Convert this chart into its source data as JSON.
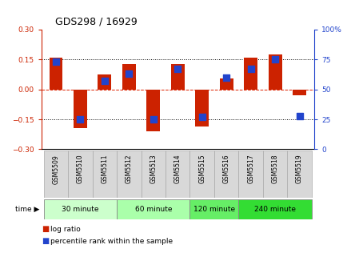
{
  "title": "GDS298 / 16929",
  "samples": [
    "GSM5509",
    "GSM5510",
    "GSM5511",
    "GSM5512",
    "GSM5513",
    "GSM5514",
    "GSM5515",
    "GSM5516",
    "GSM5517",
    "GSM5518",
    "GSM5519"
  ],
  "log_ratio": [
    0.16,
    -0.195,
    0.075,
    0.128,
    -0.21,
    0.128,
    -0.185,
    0.055,
    0.158,
    0.175,
    -0.03
  ],
  "percentile": [
    73,
    25,
    57,
    63,
    25,
    67,
    27,
    60,
    67,
    75,
    28
  ],
  "groups": [
    {
      "label": "30 minute",
      "samples": [
        0,
        1,
        2
      ],
      "color": "#ccffcc"
    },
    {
      "label": "60 minute",
      "samples": [
        3,
        4,
        5
      ],
      "color": "#aaffaa"
    },
    {
      "label": "120 minute",
      "samples": [
        6,
        7
      ],
      "color": "#66ee66"
    },
    {
      "label": "240 minute",
      "samples": [
        8,
        9,
        10
      ],
      "color": "#33dd33"
    }
  ],
  "ylim_left": [
    -0.3,
    0.3
  ],
  "ylim_right": [
    0,
    100
  ],
  "yticks_left": [
    -0.3,
    -0.15,
    0,
    0.15,
    0.3
  ],
  "yticks_right": [
    0,
    25,
    50,
    75,
    100
  ],
  "hlines_dotted": [
    0.15,
    -0.15
  ],
  "hline_zero": 0,
  "bar_color": "#cc2200",
  "dot_color": "#2244cc",
  "bg_color": "#ffffff",
  "left_tick_color": "#cc2200",
  "right_tick_color": "#2244cc",
  "bar_width": 0.55,
  "dot_size": 28,
  "cell_color": "#d8d8d8",
  "cell_edge_color": "#aaaaaa"
}
